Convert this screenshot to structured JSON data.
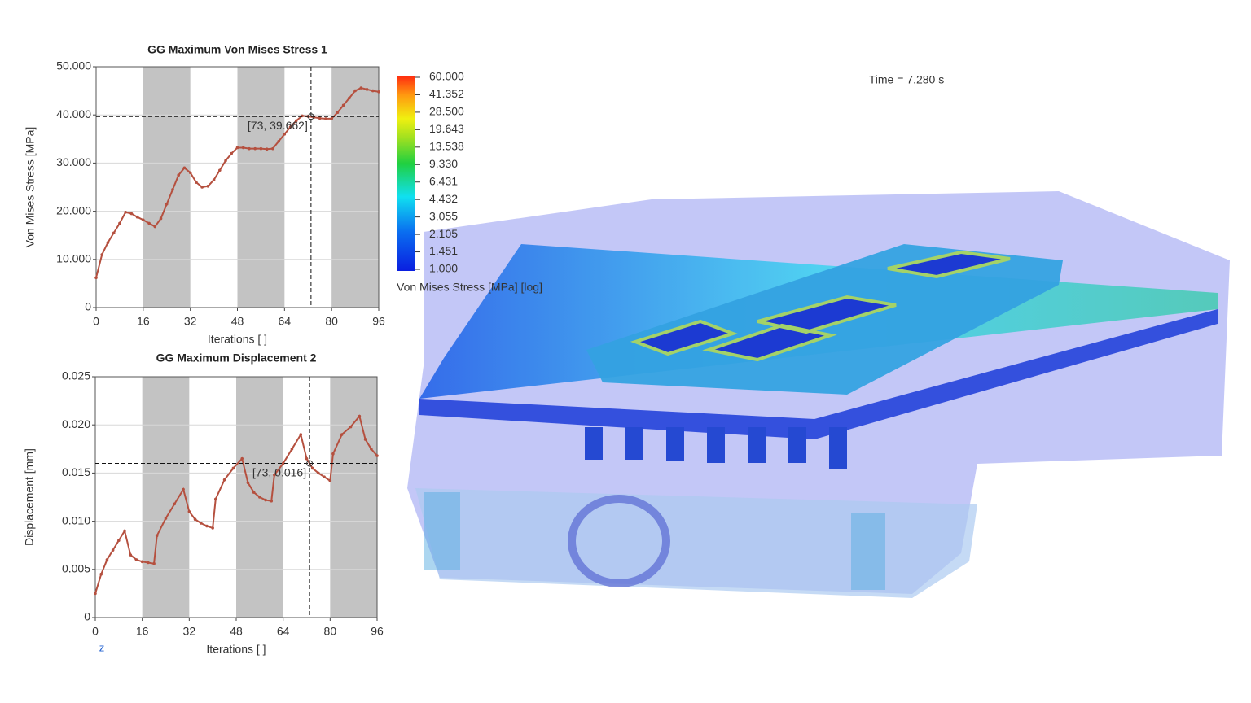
{
  "chart_data": [
    {
      "type": "line",
      "title": "GG Maximum Von Mises Stress 1",
      "x_label": "Iterations [ ]",
      "y_label": "Von Mises Stress [MPa]",
      "x": [
        0,
        2,
        4,
        6,
        8,
        10,
        12,
        14,
        16,
        18,
        20,
        22,
        24,
        26,
        28,
        30,
        32,
        34,
        36,
        38,
        40,
        42,
        44,
        46,
        48,
        50,
        52,
        54,
        56,
        58,
        60,
        62,
        64,
        66,
        68,
        70,
        72,
        74,
        76,
        78,
        80,
        82,
        84,
        86,
        88,
        90,
        92,
        94,
        96
      ],
      "values": [
        6.2,
        11,
        13.5,
        15.5,
        17.5,
        19.8,
        19.5,
        18.8,
        18.2,
        17.5,
        16.8,
        18.5,
        21.5,
        24.5,
        27.5,
        29,
        28,
        26,
        25,
        25.2,
        26.5,
        28.5,
        30.5,
        32,
        33.2,
        33.2,
        33,
        33,
        33,
        32.9,
        33,
        34.5,
        36,
        37.5,
        38.8,
        39.8,
        39.7,
        39.5,
        39.3,
        39.2,
        39.2,
        40.5,
        42,
        43.5,
        45,
        45.6,
        45.3,
        45,
        44.8
      ],
      "color": "#b5503f",
      "grid": true,
      "xlim": [
        0,
        96
      ],
      "xticks": [
        0,
        16,
        32,
        48,
        64,
        80,
        96
      ],
      "ylim": [
        0,
        50
      ],
      "yticks": [
        0,
        {
          "value": 10,
          "label": "10.000"
        },
        {
          "value": 20,
          "label": "20.000"
        },
        {
          "value": 30,
          "label": "30.000"
        },
        {
          "value": 40,
          "label": "40.000"
        },
        {
          "value": 50,
          "label": "50.000"
        }
      ],
      "bands": [
        [
          16,
          32
        ],
        [
          48,
          64
        ],
        [
          80,
          96
        ]
      ],
      "band_color": "#c3c3c3",
      "cursor": {
        "x": 73,
        "y": 39.662,
        "label": "[73, 39.662]"
      }
    },
    {
      "type": "line",
      "title": "GG Maximum Displacement 2",
      "x_label": "Iterations [ ]",
      "y_label": "Displacement [mm]",
      "x": [
        0,
        2,
        4,
        6,
        8,
        10,
        12,
        14,
        16,
        18,
        20,
        21,
        24,
        27,
        30,
        32,
        34,
        36,
        38,
        40,
        41,
        44,
        47,
        50,
        52,
        54,
        56,
        58,
        60,
        61,
        64,
        67,
        70,
        72,
        74,
        76,
        78,
        80,
        81,
        84,
        87,
        90,
        92,
        94,
        96
      ],
      "values": [
        0.0025,
        0.0045,
        0.006,
        0.007,
        0.008,
        0.009,
        0.0065,
        0.006,
        0.0058,
        0.0057,
        0.0056,
        0.0085,
        0.0103,
        0.0118,
        0.0133,
        0.011,
        0.0102,
        0.0098,
        0.0095,
        0.0093,
        0.0123,
        0.0143,
        0.0155,
        0.0165,
        0.014,
        0.013,
        0.0125,
        0.0122,
        0.0121,
        0.0148,
        0.016,
        0.0175,
        0.019,
        0.0165,
        0.0155,
        0.015,
        0.0146,
        0.0142,
        0.017,
        0.019,
        0.0198,
        0.0209,
        0.0185,
        0.0175,
        0.0168
      ],
      "color": "#b5503f",
      "grid": true,
      "xlim": [
        0,
        96
      ],
      "xticks": [
        0,
        16,
        32,
        48,
        64,
        80,
        96
      ],
      "ylim": [
        0,
        0.025
      ],
      "yticks": [
        0,
        {
          "value": 0.005,
          "label": "0.005"
        },
        {
          "value": 0.01,
          "label": "0.010"
        },
        {
          "value": 0.015,
          "label": "0.015"
        },
        {
          "value": 0.02,
          "label": "0.020"
        },
        {
          "value": 0.025,
          "label": "0.025"
        }
      ],
      "bands": [
        [
          16,
          32
        ],
        [
          48,
          64
        ],
        [
          80,
          96
        ]
      ],
      "band_color": "#c3c3c3",
      "cursor": {
        "x": 73,
        "y": 0.016,
        "label": "[73, 0.016]"
      }
    }
  ],
  "colorbar": {
    "label": "Von Mises Stress [MPa] [log]",
    "scale": "log",
    "ticks": [
      {
        "value": 60,
        "label": "60.000"
      },
      {
        "value": 41.352,
        "label": "41.352"
      },
      {
        "value": 28.5,
        "label": "28.500"
      },
      {
        "value": 19.643,
        "label": "19.643"
      },
      {
        "value": 13.538,
        "label": "13.538"
      },
      {
        "value": 9.33,
        "label": "9.330"
      },
      {
        "value": 6.431,
        "label": "6.431"
      },
      {
        "value": 4.432,
        "label": "4.432"
      },
      {
        "value": 3.055,
        "label": "3.055"
      },
      {
        "value": 2.105,
        "label": "2.105"
      },
      {
        "value": 1.451,
        "label": "1.451"
      },
      {
        "value": 1,
        "label": "1.000"
      }
    ]
  },
  "time_label": "Time = 7.280 s",
  "axis_triad_label": "z"
}
